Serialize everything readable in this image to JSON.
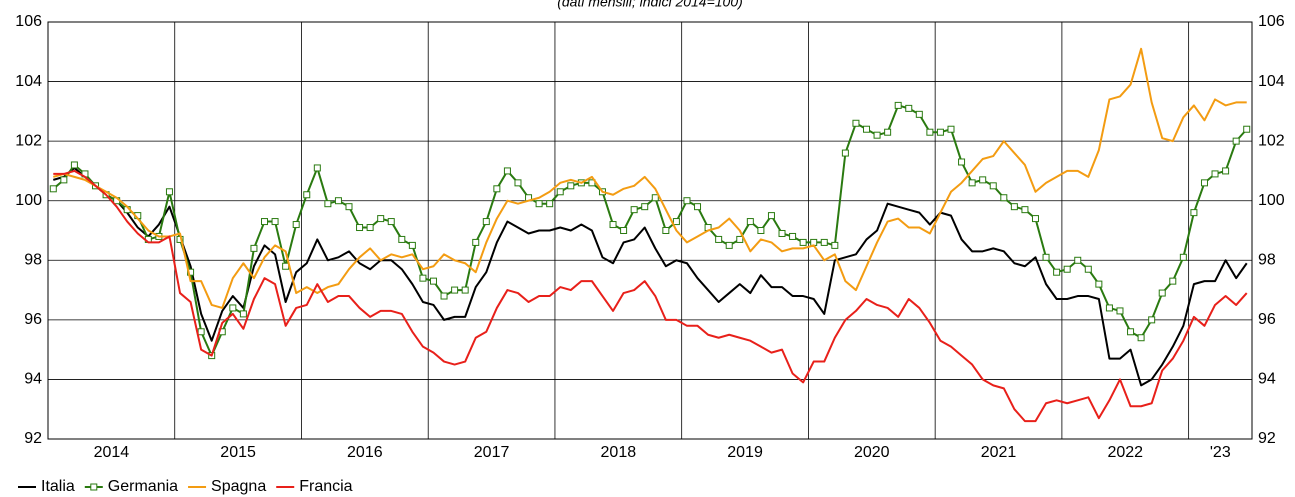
{
  "chart_data": {
    "type": "line",
    "subtitle": "(dati mensili; indici 2014=100)",
    "categories": [
      null,
      null,
      null,
      null,
      null,
      null,
      "2014",
      null,
      null,
      null,
      null,
      null,
      null,
      null,
      null,
      null,
      null,
      null,
      "2015",
      null,
      null,
      null,
      null,
      null,
      null,
      null,
      null,
      null,
      null,
      null,
      "2016",
      null,
      null,
      null,
      null,
      null,
      null,
      null,
      null,
      null,
      null,
      null,
      "2017",
      null,
      null,
      null,
      null,
      null,
      null,
      null,
      null,
      null,
      null,
      null,
      "2018",
      null,
      null,
      null,
      null,
      null,
      null,
      null,
      null,
      null,
      null,
      null,
      "2019",
      null,
      null,
      null,
      null,
      null,
      null,
      null,
      null,
      null,
      null,
      null,
      "2020",
      null,
      null,
      null,
      null,
      null,
      null,
      null,
      null,
      null,
      null,
      null,
      "2021",
      null,
      null,
      null,
      null,
      null,
      null,
      null,
      null,
      null,
      null,
      null,
      "2022",
      null,
      null,
      null,
      null,
      null,
      null,
      null,
      null,
      "'23",
      null,
      null
    ],
    "ylim": [
      92,
      106
    ],
    "yticks": [
      92,
      94,
      96,
      98,
      100,
      102,
      104,
      106
    ],
    "grid": true,
    "legend": "bottom-left",
    "series": [
      {
        "name": "Italia",
        "color": "#000000",
        "values": [
          100.7,
          100.8,
          101.1,
          100.8,
          100.5,
          100.2,
          100.0,
          99.6,
          99.1,
          98.8,
          99.2,
          99.8,
          98.8,
          97.8,
          96.2,
          95.3,
          96.3,
          96.8,
          96.4,
          97.8,
          98.5,
          98.2,
          96.6,
          97.6,
          97.9,
          98.7,
          98.0,
          98.1,
          98.3,
          97.9,
          97.7,
          98.0,
          98.0,
          97.7,
          97.2,
          96.6,
          96.5,
          96.0,
          96.1,
          96.1,
          97.1,
          97.6,
          98.6,
          99.3,
          99.1,
          98.9,
          99.0,
          99.0,
          99.1,
          99.0,
          99.2,
          99.0,
          98.1,
          97.9,
          98.6,
          98.7,
          99.1,
          98.4,
          97.8,
          98.0,
          97.9,
          97.4,
          97.0,
          96.6,
          96.9,
          97.2,
          96.9,
          97.5,
          97.1,
          97.1,
          96.8,
          96.8,
          96.7,
          96.2,
          98.0,
          98.1,
          98.2,
          98.7,
          99.0,
          99.9,
          99.8,
          99.7,
          99.6,
          99.2,
          99.6,
          99.5,
          98.7,
          98.3,
          98.3,
          98.4,
          98.3,
          97.9,
          97.8,
          98.1,
          97.2,
          96.7,
          96.7,
          96.8,
          96.8,
          96.7,
          94.7,
          94.7,
          95.0,
          93.8,
          94.0,
          94.5,
          95.1,
          95.8,
          97.2,
          97.3,
          97.3,
          98.0,
          97.4,
          97.9
        ]
      },
      {
        "name": "Germania",
        "color": "#2a7a10",
        "values": [
          100.4,
          100.7,
          101.2,
          100.9,
          100.5,
          100.2,
          100.0,
          99.7,
          99.5,
          98.7,
          98.8,
          100.3,
          98.7,
          97.6,
          95.6,
          94.8,
          95.6,
          96.4,
          96.2,
          98.4,
          99.3,
          99.3,
          97.8,
          99.2,
          100.2,
          101.1,
          99.9,
          100.0,
          99.8,
          99.1,
          99.1,
          99.4,
          99.3,
          98.7,
          98.5,
          97.4,
          97.3,
          96.8,
          97.0,
          97.0,
          98.6,
          99.3,
          100.4,
          101.0,
          100.6,
          100.1,
          99.9,
          99.9,
          100.3,
          100.5,
          100.6,
          100.6,
          100.3,
          99.2,
          99.0,
          99.7,
          99.8,
          100.1,
          99.0,
          99.3,
          100.0,
          99.8,
          99.1,
          98.7,
          98.5,
          98.7,
          99.3,
          99.0,
          99.5,
          98.9,
          98.8,
          98.6,
          98.6,
          98.6,
          98.5,
          101.6,
          102.6,
          102.4,
          102.2,
          102.3,
          103.2,
          103.1,
          102.9,
          102.3,
          102.3,
          102.4,
          101.3,
          100.6,
          100.7,
          100.5,
          100.1,
          99.8,
          99.7,
          99.4,
          98.1,
          97.6,
          97.7,
          98.0,
          97.7,
          97.2,
          96.4,
          96.3,
          95.6,
          95.4,
          96.0,
          96.9,
          97.3,
          98.1,
          99.6,
          100.6,
          100.9,
          101.0,
          102.0,
          102.4
        ]
      },
      {
        "name": "Spagna",
        "color": "#f39c12",
        "values": [
          100.8,
          100.9,
          100.8,
          100.7,
          100.5,
          100.3,
          100.1,
          99.8,
          99.4,
          99.0,
          98.8,
          98.8,
          98.9,
          97.3,
          97.3,
          96.5,
          96.4,
          97.4,
          97.9,
          97.4,
          98.1,
          98.5,
          98.3,
          96.9,
          97.1,
          96.9,
          97.1,
          97.2,
          97.7,
          98.1,
          98.4,
          98.0,
          98.2,
          98.1,
          98.2,
          97.7,
          97.8,
          98.2,
          98.0,
          97.9,
          97.6,
          98.6,
          99.4,
          100.0,
          99.9,
          100.0,
          100.1,
          100.3,
          100.6,
          100.7,
          100.6,
          100.8,
          100.3,
          100.2,
          100.4,
          100.5,
          100.8,
          100.4,
          99.7,
          99.0,
          98.6,
          98.8,
          99.0,
          99.1,
          99.4,
          99.0,
          98.3,
          98.7,
          98.6,
          98.3,
          98.4,
          98.4,
          98.5,
          98.0,
          98.2,
          97.3,
          97.0,
          97.8,
          98.6,
          99.3,
          99.4,
          99.1,
          99.1,
          98.9,
          99.6,
          100.3,
          100.6,
          101.0,
          101.4,
          101.5,
          102.0,
          101.6,
          101.2,
          100.3,
          100.6,
          100.8,
          101.0,
          101.0,
          100.8,
          101.7,
          103.4,
          103.5,
          103.9,
          105.1,
          103.3,
          102.1,
          102.0,
          102.8,
          103.2,
          102.7,
          103.4,
          103.2,
          103.3,
          103.3
        ]
      },
      {
        "name": "Francia",
        "color": "#e8201a",
        "values": [
          100.9,
          100.9,
          101.0,
          100.8,
          100.5,
          100.2,
          99.8,
          99.3,
          98.9,
          98.6,
          98.6,
          98.8,
          96.9,
          96.6,
          95.0,
          94.8,
          95.9,
          96.2,
          95.7,
          96.7,
          97.4,
          97.2,
          95.8,
          96.4,
          96.5,
          97.2,
          96.6,
          96.8,
          96.8,
          96.4,
          96.1,
          96.3,
          96.3,
          96.2,
          95.6,
          95.1,
          94.9,
          94.6,
          94.5,
          94.6,
          95.4,
          95.6,
          96.4,
          97.0,
          96.9,
          96.6,
          96.8,
          96.8,
          97.1,
          97.0,
          97.3,
          97.3,
          96.8,
          96.3,
          96.9,
          97.0,
          97.3,
          96.8,
          96.0,
          96.0,
          95.8,
          95.8,
          95.5,
          95.4,
          95.5,
          95.4,
          95.3,
          95.1,
          94.9,
          95.0,
          94.2,
          93.9,
          94.6,
          94.6,
          95.4,
          96.0,
          96.3,
          96.7,
          96.5,
          96.4,
          96.1,
          96.7,
          96.4,
          95.9,
          95.3,
          95.1,
          94.8,
          94.5,
          94.0,
          93.8,
          93.7,
          93.0,
          92.6,
          92.6,
          93.2,
          93.3,
          93.2,
          93.3,
          93.4,
          92.7,
          93.3,
          94.0,
          93.1,
          93.1,
          93.2,
          94.3,
          94.7,
          95.3,
          96.1,
          95.8,
          96.5,
          96.8,
          96.5,
          96.9
        ]
      }
    ]
  }
}
